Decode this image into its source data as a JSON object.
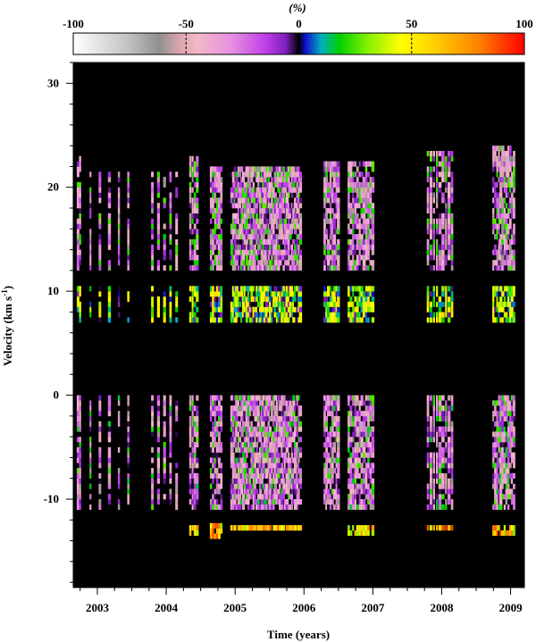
{
  "colorbar": {
    "unit_label": "(%)",
    "ticks": [
      "-100",
      "-50",
      "0",
      "50",
      "100"
    ],
    "tick_values": [
      -100,
      -50,
      0,
      50,
      100
    ],
    "stops": [
      {
        "v": -100,
        "c": "#ffffff"
      },
      {
        "v": -75,
        "c": "#c0c0c0"
      },
      {
        "v": -62,
        "c": "#909090"
      },
      {
        "v": -52,
        "c": "#e0a8b0"
      },
      {
        "v": -45,
        "c": "#f2b8c8"
      },
      {
        "v": -30,
        "c": "#e890e0"
      },
      {
        "v": -15,
        "c": "#c040e8"
      },
      {
        "v": -6,
        "c": "#8020c0"
      },
      {
        "v": 0,
        "c": "#000000"
      },
      {
        "v": 3,
        "c": "#1010d0"
      },
      {
        "v": 10,
        "c": "#00b0c0"
      },
      {
        "v": 18,
        "c": "#00d000"
      },
      {
        "v": 30,
        "c": "#80f000"
      },
      {
        "v": 45,
        "c": "#ffff00"
      },
      {
        "v": 60,
        "c": "#ffd000"
      },
      {
        "v": 80,
        "c": "#ff8000"
      },
      {
        "v": 100,
        "c": "#ff0000"
      }
    ]
  },
  "chart_data": {
    "type": "heatmap",
    "title": "",
    "xlabel": "Time (years)",
    "ylabel": "Velocity (km s",
    "ylabel_sup": "-1",
    "ylabel_close": ")",
    "xlim": [
      2002.65,
      2009.2
    ],
    "ylim": [
      -18.5,
      32
    ],
    "xticks": [
      2003,
      2004,
      2005,
      2006,
      2007,
      2008,
      2009
    ],
    "xtick_labels": [
      "2003",
      "2004",
      "2005",
      "2006",
      "2007",
      "2008",
      "2009"
    ],
    "yticks": [
      -10,
      0,
      10,
      20,
      30
    ],
    "ytick_labels": [
      "-10",
      "0",
      "10",
      "20",
      "30"
    ],
    "background_color": "#000000",
    "epoch_groups": [
      {
        "t0": 2002.72,
        "t1": 2002.75,
        "n": 2,
        "vmin": -11.0,
        "vmax": 22.6,
        "bands": [
          "A",
          "B",
          "C"
        ]
      },
      {
        "t0": 2002.9,
        "t1": 2003.45,
        "n": 5,
        "vmin": -11.0,
        "vmax": 21.5,
        "bands": [
          "A",
          "B",
          "C"
        ]
      },
      {
        "t0": 2003.8,
        "t1": 2004.15,
        "n": 5,
        "vmin": -11.0,
        "vmax": 21.5,
        "bands": [
          "A",
          "B",
          "C"
        ]
      },
      {
        "t0": 2004.35,
        "t1": 2004.45,
        "n": 4,
        "vmin": -13.5,
        "vmax": 23.0,
        "bands": [
          "A",
          "B",
          "C",
          "D"
        ]
      },
      {
        "t0": 2004.65,
        "t1": 2004.8,
        "n": 6,
        "vmin": -13.8,
        "vmax": 22.0,
        "bands": [
          "A",
          "B",
          "C",
          "D"
        ]
      },
      {
        "t0": 2004.95,
        "t1": 2005.95,
        "n": 42,
        "vmin": -13.0,
        "vmax": 22.0,
        "bands": [
          "A",
          "B",
          "C",
          "D"
        ]
      },
      {
        "t0": 2006.3,
        "t1": 2006.5,
        "n": 8,
        "vmin": -12.5,
        "vmax": 22.2,
        "bands": [
          "A",
          "B",
          "C",
          "D"
        ]
      },
      {
        "t0": 2006.65,
        "t1": 2007.0,
        "n": 12,
        "vmin": -13.5,
        "vmax": 22.5,
        "bands": [
          "A",
          "B",
          "C",
          "D"
        ]
      },
      {
        "t0": 2007.8,
        "t1": 2008.15,
        "n": 9,
        "vmin": -13.0,
        "vmax": 23.5,
        "bands": [
          "A",
          "B",
          "C",
          "D"
        ]
      },
      {
        "t0": 2008.75,
        "t1": 2009.05,
        "n": 12,
        "vmin": -13.5,
        "vmax": 24.2,
        "bands": [
          "A",
          "B",
          "C",
          "D"
        ]
      }
    ],
    "bands": {
      "A": {
        "vmin": 12,
        "vmax": 24,
        "value": -32
      },
      "B": {
        "vmin": 7,
        "vmax": 10.5,
        "value": 22
      },
      "C": {
        "vmin": -11,
        "vmax": 0,
        "value": -30
      },
      "D": {
        "vmin": -13.8,
        "vmax": -12.5,
        "value": 60
      }
    }
  }
}
